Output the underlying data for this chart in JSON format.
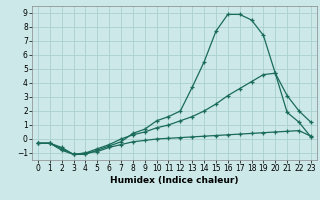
{
  "xlabel": "Humidex (Indice chaleur)",
  "background_color": "#cce8e8",
  "grid_color": "#aad0d0",
  "line_color": "#1a6b5a",
  "xlim": [
    -0.5,
    23.5
  ],
  "ylim": [
    -1.5,
    9.5
  ],
  "xticks": [
    0,
    1,
    2,
    3,
    4,
    5,
    6,
    7,
    8,
    9,
    10,
    11,
    12,
    13,
    14,
    15,
    16,
    17,
    18,
    19,
    20,
    21,
    22,
    23
  ],
  "yticks": [
    -1,
    0,
    1,
    2,
    3,
    4,
    5,
    6,
    7,
    8,
    9
  ],
  "curves": [
    {
      "x": [
        0,
        1,
        2,
        3,
        4,
        5,
        6,
        7,
        8,
        9,
        10,
        11,
        12,
        13,
        14,
        15,
        16,
        17,
        18,
        19,
        20,
        21,
        22,
        23
      ],
      "y": [
        -0.3,
        -0.3,
        -0.6,
        -1.1,
        -1.1,
        -0.8,
        -0.5,
        -0.2,
        0.4,
        0.7,
        1.3,
        1.6,
        2.0,
        3.7,
        5.5,
        7.7,
        8.9,
        8.9,
        8.5,
        7.4,
        4.7,
        3.1,
        2.0,
        1.2
      ]
    },
    {
      "x": [
        0,
        1,
        2,
        3,
        4,
        5,
        6,
        7,
        8,
        9,
        10,
        11,
        12,
        13,
        14,
        15,
        16,
        17,
        18,
        19,
        20,
        21,
        22,
        23
      ],
      "y": [
        -0.3,
        -0.3,
        -0.7,
        -1.1,
        -1.0,
        -0.7,
        -0.4,
        0.0,
        0.3,
        0.5,
        0.8,
        1.0,
        1.3,
        1.6,
        2.0,
        2.5,
        3.1,
        3.6,
        4.1,
        4.6,
        4.7,
        1.9,
        1.2,
        0.15
      ]
    },
    {
      "x": [
        0,
        1,
        2,
        3,
        4,
        5,
        6,
        7,
        8,
        9,
        10,
        11,
        12,
        13,
        14,
        15,
        16,
        17,
        18,
        19,
        20,
        21,
        22,
        23
      ],
      "y": [
        -0.3,
        -0.3,
        -0.8,
        -1.1,
        -1.0,
        -0.9,
        -0.6,
        -0.4,
        -0.2,
        -0.1,
        0.0,
        0.05,
        0.1,
        0.15,
        0.2,
        0.25,
        0.3,
        0.35,
        0.4,
        0.45,
        0.5,
        0.55,
        0.6,
        0.2
      ]
    }
  ]
}
